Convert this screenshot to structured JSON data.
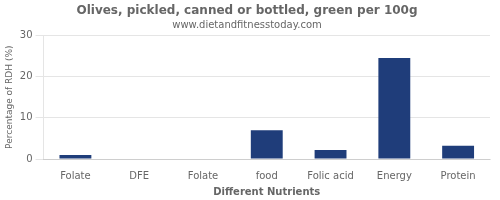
{
  "chart_data": {
    "type": "bar",
    "title": "Olives, pickled, canned or bottled, green per 100g",
    "subtitle": "www.dietandfitnesstoday.com",
    "xlabel": "Different Nutrients",
    "ylabel": "Percentage of RDH (%)",
    "categories": [
      "Folate",
      "DFE",
      "Folate",
      "food",
      "Folic acid",
      "Energy",
      "Protein"
    ],
    "values": [
      1.0,
      0.0,
      0.0,
      7.0,
      2.2,
      24.5,
      3.2
    ],
    "color": "#1F3D7A",
    "ylim": [
      0,
      30
    ],
    "yticks": [
      0,
      10,
      20,
      30
    ],
    "grid": true
  }
}
